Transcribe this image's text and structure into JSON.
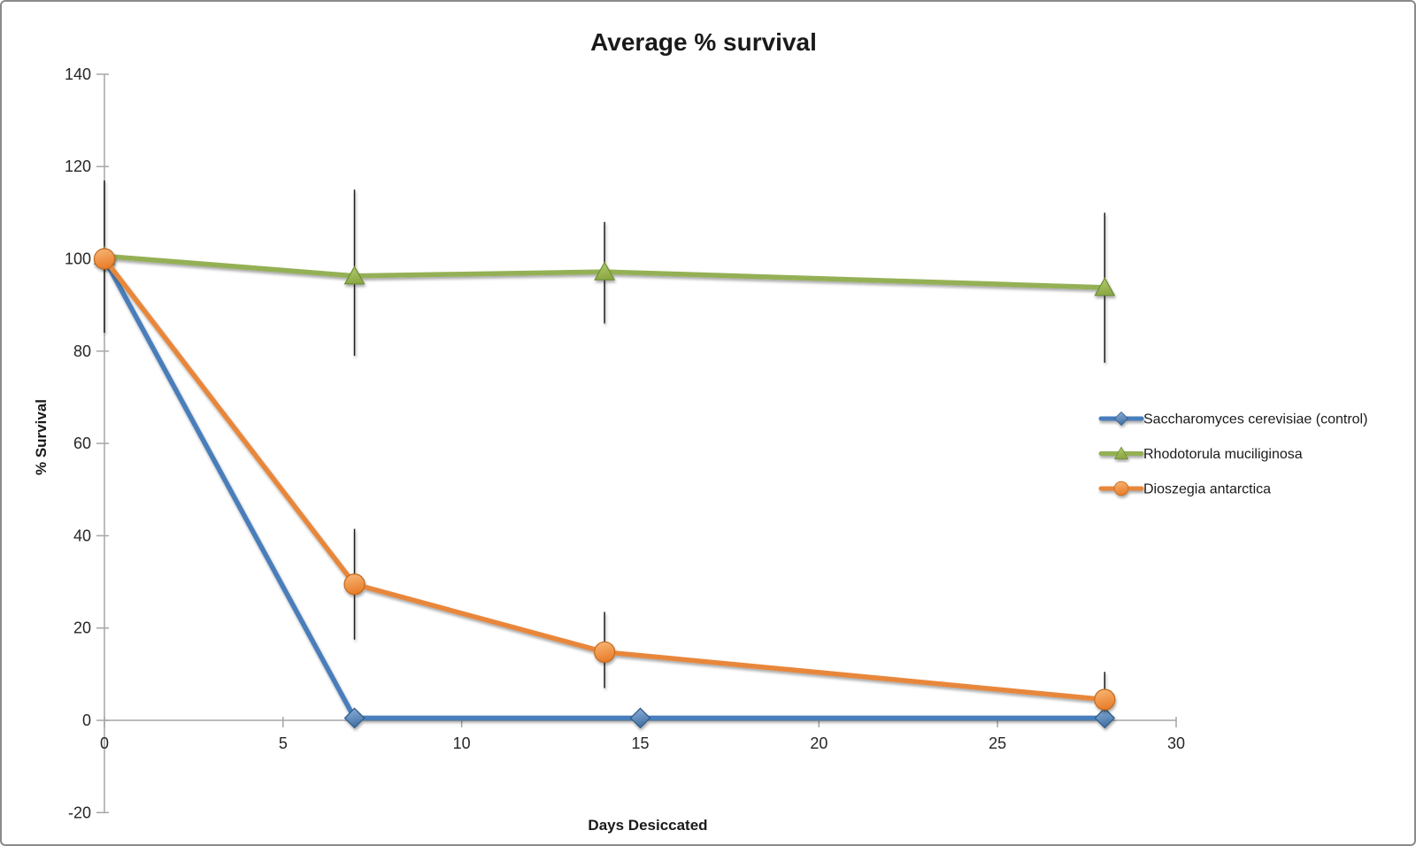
{
  "chart_data": {
    "type": "line",
    "title": "Average % survival",
    "xlabel": "Days Desiccated",
    "ylabel": "% Survival",
    "xlim": [
      0,
      30
    ],
    "ylim": [
      -20,
      140
    ],
    "x_ticks": [
      0,
      5,
      10,
      15,
      20,
      25,
      30
    ],
    "y_ticks": [
      140,
      120,
      100,
      80,
      60,
      40,
      20,
      0,
      -20
    ],
    "grid": false,
    "legend_position": "right",
    "colors": {
      "axis": "#a6a6a6",
      "error_bar": "#1f1f1f",
      "text": "#1a1a1a"
    },
    "series": [
      {
        "name": "Saccharomyces cerevisiae (control)",
        "marker": "diamond",
        "color": "#4A7EBB",
        "marker_light": "#8FB2DC",
        "marker_dark": "#4472A4",
        "marker_edge": "#2F5A87",
        "x": [
          0,
          7,
          15,
          28
        ],
        "values": [
          100,
          0.5,
          0.5,
          0.5
        ],
        "error_bars": []
      },
      {
        "name": "Rhodotorula muciliginosa",
        "marker": "triangle",
        "color": "#94B054",
        "marker_light": "#B4CE72",
        "marker_dark": "#8CA944",
        "marker_edge": "#6E8C35",
        "x": [
          0,
          7,
          14,
          28
        ],
        "values": [
          100.6,
          96.3,
          97.2,
          93.8
        ],
        "error_bars": [
          {
            "x": 0,
            "low": 84,
            "high": 117
          },
          {
            "x": 7,
            "low": 79,
            "high": 115
          },
          {
            "x": 14,
            "low": 86,
            "high": 108
          },
          {
            "x": 28,
            "low": 77.5,
            "high": 110
          }
        ]
      },
      {
        "name": "Dioszegia antarctica",
        "marker": "circle",
        "color": "#E8873B",
        "marker_light": "#F8B878",
        "marker_dark": "#E97F2C",
        "marker_edge": "#C2691D",
        "x": [
          0,
          7,
          14,
          28
        ],
        "values": [
          100,
          29.5,
          14.8,
          4.5
        ],
        "error_bars": [
          {
            "x": 7,
            "low": 17.5,
            "high": 41.5
          },
          {
            "x": 14,
            "low": 7,
            "high": 23.5
          },
          {
            "x": 28,
            "low": 2,
            "high": 10.5
          }
        ]
      }
    ]
  }
}
